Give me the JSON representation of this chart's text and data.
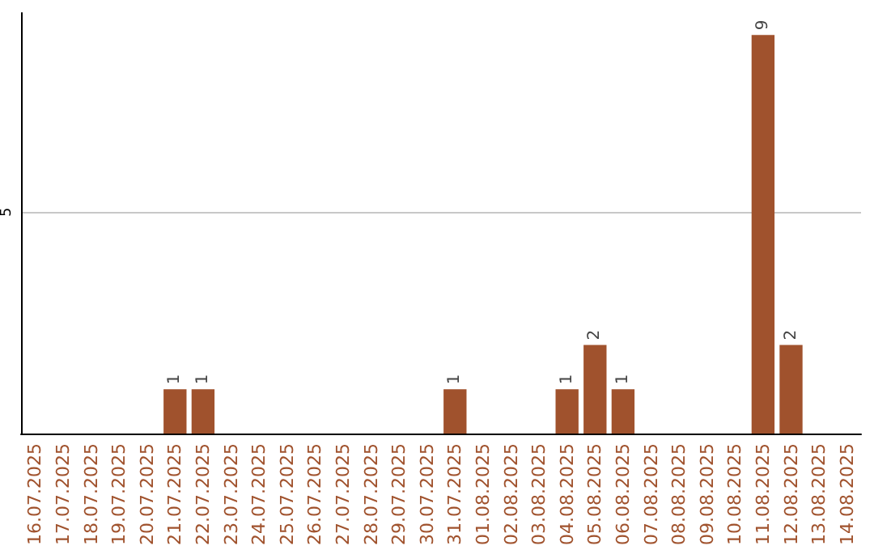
{
  "chart_data": {
    "type": "bar",
    "categories": [
      "16.07.2025",
      "17.07.2025",
      "18.07.2025",
      "19.07.2025",
      "20.07.2025",
      "21.07.2025",
      "22.07.2025",
      "23.07.2025",
      "24.07.2025",
      "25.07.2025",
      "26.07.2025",
      "27.07.2025",
      "28.07.2025",
      "29.07.2025",
      "30.07.2025",
      "31.07.2025",
      "01.08.2025",
      "02.08.2025",
      "03.08.2025",
      "04.08.2025",
      "05.08.2025",
      "06.08.2025",
      "07.08.2025",
      "08.08.2025",
      "09.08.2025",
      "10.08.2025",
      "11.08.2025",
      "12.08.2025",
      "13.08.2025",
      "14.08.2025"
    ],
    "values": [
      0,
      0,
      0,
      0,
      0,
      1,
      1,
      0,
      0,
      0,
      0,
      0,
      0,
      0,
      0,
      1,
      0,
      0,
      0,
      1,
      2,
      1,
      0,
      0,
      0,
      0,
      9,
      2,
      0,
      0
    ],
    "value_labels": [
      null,
      null,
      null,
      null,
      null,
      "1",
      "1",
      null,
      null,
      null,
      null,
      null,
      null,
      null,
      null,
      "1",
      null,
      null,
      null,
      "1",
      "2",
      "1",
      null,
      null,
      null,
      null,
      "9",
      "2",
      null,
      null
    ],
    "color": "#a0522d",
    "ylim": [
      0,
      9.5
    ],
    "yticks": [
      5
    ],
    "grid": "y"
  }
}
